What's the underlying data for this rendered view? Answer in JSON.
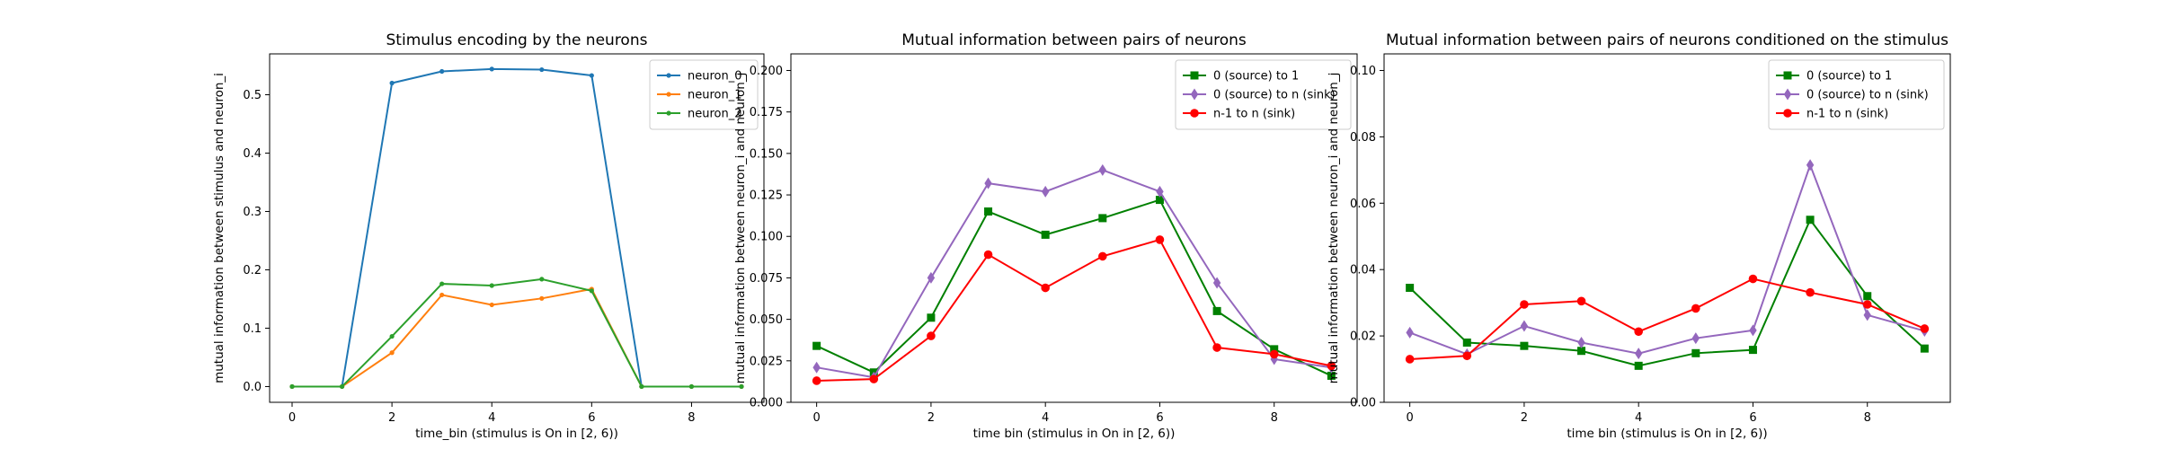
{
  "chart_data": [
    {
      "type": "line",
      "title": "Stimulus encoding by the neurons",
      "xlabel": "time_bin (stimulus is On in [2, 6))",
      "ylabel": "mutual information between stimulus and neuron_i",
      "xlim": [
        -0.45,
        9.45
      ],
      "ylim": [
        -0.027,
        0.57
      ],
      "xticks": [
        0,
        2,
        4,
        6,
        8
      ],
      "yticks": [
        0.0,
        0.1,
        0.2,
        0.3,
        0.4,
        0.5
      ],
      "ytick_labels": [
        "0.0",
        "0.1",
        "0.2",
        "0.3",
        "0.4",
        "0.5"
      ],
      "legend_position": "top-right",
      "x": [
        0,
        1,
        2,
        3,
        4,
        5,
        6,
        7,
        8,
        9
      ],
      "series": [
        {
          "name": "neuron_0",
          "color": "#1f77b4",
          "marker": "dot",
          "values": [
            0.0,
            0.0,
            0.52,
            0.54,
            0.544,
            0.543,
            0.533,
            0.0,
            0.0,
            0.0
          ]
        },
        {
          "name": "neuron_1",
          "color": "#ff7f0e",
          "marker": "dot",
          "values": [
            0.0,
            0.0,
            0.058,
            0.157,
            0.14,
            0.151,
            0.167,
            0.0,
            0.0,
            0.0
          ]
        },
        {
          "name": "neuron_2",
          "color": "#2ca02c",
          "marker": "dot",
          "values": [
            0.0,
            0.0,
            0.086,
            0.176,
            0.173,
            0.184,
            0.164,
            0.0,
            0.0,
            0.0
          ]
        }
      ]
    },
    {
      "type": "line",
      "title": "Mutual information between pairs of neurons",
      "xlabel": "time bin (stimulus in On in [2, 6))",
      "ylabel": "mutual information between neuron_i and neuron_j",
      "xlim": [
        -0.45,
        9.45
      ],
      "ylim": [
        0.0,
        0.21
      ],
      "xticks": [
        0,
        2,
        4,
        6,
        8
      ],
      "yticks": [
        0.0,
        0.025,
        0.05,
        0.075,
        0.1,
        0.125,
        0.15,
        0.175,
        0.2
      ],
      "ytick_labels": [
        "0.000",
        "0.025",
        "0.050",
        "0.075",
        "0.100",
        "0.125",
        "0.150",
        "0.175",
        "0.200"
      ],
      "legend_position": "top-right",
      "x": [
        0,
        1,
        2,
        3,
        4,
        5,
        6,
        7,
        8,
        9
      ],
      "series": [
        {
          "name": "0 (source) to 1",
          "color": "#008000",
          "marker": "square",
          "values": [
            0.034,
            0.018,
            0.051,
            0.115,
            0.101,
            0.111,
            0.122,
            0.055,
            0.032,
            0.016
          ]
        },
        {
          "name": "0 (source) to n (sink)",
          "color": "#9467bd",
          "marker": "diamond",
          "values": [
            0.021,
            0.015,
            0.075,
            0.132,
            0.127,
            0.14,
            0.127,
            0.072,
            0.026,
            0.021
          ]
        },
        {
          "name": "n-1 to n (sink)",
          "color": "#ff0000",
          "marker": "circle",
          "values": [
            0.013,
            0.014,
            0.04,
            0.089,
            0.069,
            0.088,
            0.098,
            0.033,
            0.029,
            0.022
          ]
        }
      ]
    },
    {
      "type": "line",
      "title": "Mutual information between pairs of neurons conditioned on the stimulus",
      "xlabel": "time bin (stimulus is On in [2, 6))",
      "ylabel": "mutual information between neuron_i and neuron_j",
      "xlim": [
        -0.45,
        9.45
      ],
      "ylim": [
        0.0,
        0.105
      ],
      "xticks": [
        0,
        2,
        4,
        6,
        8
      ],
      "yticks": [
        0.0,
        0.02,
        0.04,
        0.06,
        0.08,
        0.1
      ],
      "ytick_labels": [
        "0.00",
        "0.02",
        "0.04",
        "0.06",
        "0.08",
        "0.10"
      ],
      "legend_position": "top-right",
      "x": [
        0,
        1,
        2,
        3,
        4,
        5,
        6,
        7,
        8,
        9
      ],
      "series": [
        {
          "name": "0 (source) to 1",
          "color": "#008000",
          "marker": "square",
          "values": [
            0.0345,
            0.018,
            0.017,
            0.0155,
            0.011,
            0.0148,
            0.0158,
            0.055,
            0.032,
            0.0162
          ]
        },
        {
          "name": "0 (source) to n (sink)",
          "color": "#9467bd",
          "marker": "diamond",
          "values": [
            0.021,
            0.0145,
            0.023,
            0.018,
            0.0147,
            0.0193,
            0.0217,
            0.0715,
            0.0263,
            0.0215
          ]
        },
        {
          "name": "n-1 to n (sink)",
          "color": "#ff0000",
          "marker": "circle",
          "values": [
            0.013,
            0.014,
            0.0295,
            0.0305,
            0.0213,
            0.0283,
            0.0372,
            0.0331,
            0.0295,
            0.0222
          ]
        }
      ]
    }
  ]
}
